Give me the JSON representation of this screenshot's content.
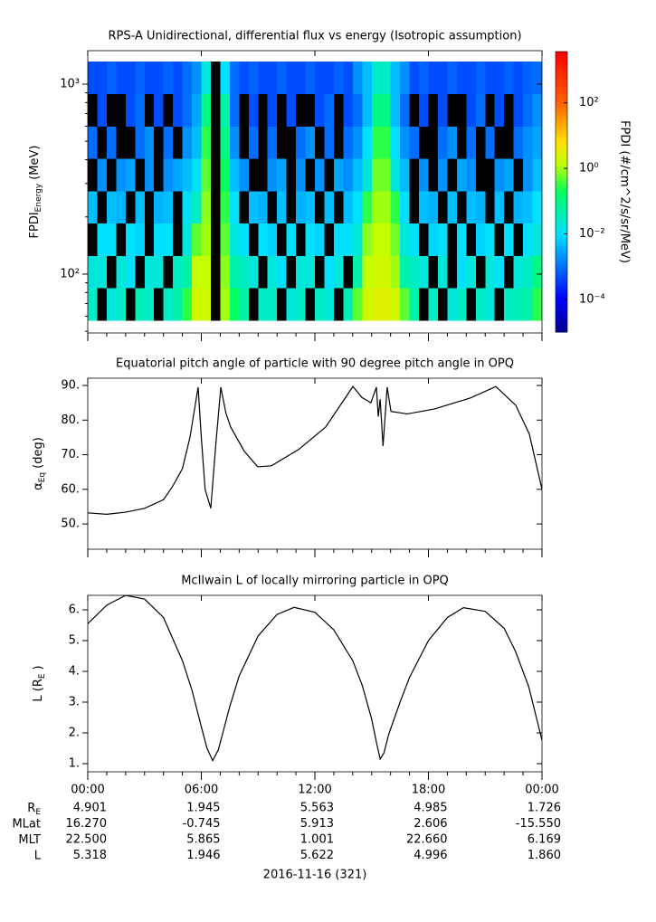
{
  "chart_data": [
    {
      "type": "spectrogram",
      "title": "RPS-A Unidirectional, differential flux vs energy (Isotropic assumption)",
      "y_label": {
        "text": "FPDI",
        "sub": "Energy",
        "suffix": "(MeV)"
      },
      "xlim": [
        0,
        24
      ],
      "xticks": [
        0,
        6,
        12,
        18,
        24
      ],
      "xminorticks": [
        1,
        2,
        3,
        4,
        5,
        7,
        8,
        9,
        10,
        11,
        13,
        14,
        15,
        16,
        17,
        19,
        20,
        21,
        22,
        23
      ],
      "ylim": [
        49,
        1500
      ],
      "ylog": true,
      "yticks": [
        {
          "value": 100,
          "label": "10²"
        },
        {
          "value": 1000,
          "label": "10³"
        }
      ],
      "yminorticks": [
        50,
        60,
        70,
        80,
        90,
        200,
        300,
        400,
        500,
        600,
        700,
        800,
        900
      ],
      "x_bins": [
        0,
        0.5,
        1,
        1.5,
        2,
        2.5,
        3,
        3.5,
        4,
        4.5,
        5,
        5.5,
        6,
        6.5,
        7,
        7.5,
        8,
        8.5,
        9,
        9.5,
        10,
        10.5,
        11,
        11.5,
        12,
        12.5,
        13,
        13.5,
        14,
        14.5,
        15,
        15.5,
        16,
        16.5,
        17,
        17.5,
        18,
        18.5,
        19,
        19.5,
        20,
        20.5,
        21,
        21.5,
        22,
        22.5,
        23,
        23.5,
        24
      ],
      "y_bins": [
        57,
        84.4,
        124.9,
        184.8,
        273.6,
        405,
        599,
        887,
        1313
      ],
      "colormap": "rainbow",
      "null_color": "#000000",
      "colorbar": {
        "label": "FPDI (#/cm^2/s/sr/MeV)",
        "lim": [
          1e-05,
          3700
        ],
        "log": true,
        "ticks": [
          {
            "value": 0.0001,
            "label": "10⁻⁴"
          },
          {
            "value": 0.01,
            "label": "10⁻²"
          },
          {
            "value": 1,
            "label": "10⁰"
          },
          {
            "value": 100,
            "label": "10²"
          }
        ]
      },
      "values": [
        [
          0.03,
          null,
          0.02,
          0.03,
          null,
          0.04,
          0.03,
          null,
          0.03,
          0.05,
          0.3,
          2,
          2,
          null,
          1,
          0.2,
          0.05,
          null,
          0.03,
          0.03,
          null,
          0.02,
          0.03,
          null,
          0.03,
          0.02,
          null,
          0.04,
          0.5,
          2,
          3,
          3,
          2,
          0.5,
          0.05,
          null,
          0.03,
          null,
          0.02,
          0.03,
          null,
          0.03,
          0.02,
          null,
          0.03,
          0.04,
          0.05,
          0.3
        ],
        [
          0.02,
          0.02,
          null,
          0.02,
          0.01,
          null,
          0.02,
          0.02,
          null,
          0.03,
          0.05,
          1.5,
          1.5,
          null,
          0.8,
          0.05,
          0.03,
          0.02,
          null,
          0.02,
          0.01,
          null,
          0.02,
          0.02,
          null,
          0.01,
          0.02,
          null,
          0.05,
          1.5,
          2,
          2,
          1,
          0.05,
          0.03,
          0.02,
          null,
          0.02,
          null,
          0.01,
          0.02,
          null,
          0.02,
          0.01,
          null,
          0.02,
          0.03,
          0.1
        ],
        [
          null,
          0.01,
          0.01,
          null,
          0.01,
          0.008,
          null,
          0.01,
          0.01,
          null,
          0.02,
          0.5,
          1,
          null,
          0.5,
          0.02,
          0.01,
          null,
          0.01,
          0.008,
          null,
          0.01,
          null,
          0.01,
          0.008,
          null,
          0.01,
          0.01,
          0.02,
          0.8,
          1.5,
          1.5,
          0.6,
          0.02,
          0.01,
          null,
          0.008,
          0.01,
          null,
          0.01,
          null,
          0.008,
          0.01,
          null,
          0.01,
          null,
          0.01,
          0.02
        ],
        [
          0.005,
          null,
          0.005,
          0.004,
          null,
          0.005,
          null,
          0.004,
          0.005,
          null,
          0.01,
          0.03,
          0.8,
          null,
          0.3,
          0.01,
          null,
          0.005,
          0.004,
          null,
          0.005,
          null,
          0.004,
          0.005,
          null,
          0.005,
          null,
          0.005,
          0.01,
          0.3,
          1,
          1,
          0.3,
          0.01,
          null,
          0.005,
          0.004,
          null,
          0.005,
          null,
          0.005,
          0.004,
          null,
          0.005,
          null,
          0.004,
          0.005,
          0.01
        ],
        [
          null,
          0.002,
          null,
          0.002,
          0.003,
          null,
          0.002,
          null,
          0.002,
          0.003,
          0.005,
          0.01,
          0.5,
          null,
          0.2,
          0.005,
          0.002,
          null,
          null,
          0.002,
          0.003,
          null,
          0.002,
          null,
          0.002,
          null,
          0.003,
          0.002,
          0.005,
          0.02,
          0.6,
          0.6,
          0.02,
          0.005,
          null,
          0.002,
          null,
          0.002,
          null,
          0.003,
          0.002,
          null,
          null,
          0.002,
          0.003,
          null,
          0.002,
          0.005
        ],
        [
          0.001,
          null,
          0.001,
          null,
          null,
          0.001,
          0.002,
          null,
          0.001,
          null,
          0.002,
          0.005,
          0.3,
          null,
          0.1,
          0.002,
          null,
          0.001,
          null,
          0.001,
          null,
          null,
          0.001,
          0.002,
          null,
          0.001,
          null,
          0.001,
          0.002,
          0.01,
          0.3,
          0.3,
          0.01,
          0.002,
          0.001,
          null,
          null,
          0.001,
          0.002,
          null,
          0.001,
          null,
          0.001,
          null,
          null,
          0.001,
          0.002,
          0.003
        ],
        [
          null,
          0.0005,
          null,
          null,
          0.0005,
          0.001,
          null,
          0.0005,
          null,
          0.0005,
          0.001,
          0.003,
          0.1,
          null,
          0.05,
          0.001,
          null,
          0.0005,
          null,
          0.0005,
          null,
          0.0005,
          null,
          null,
          0.0005,
          0.001,
          null,
          0.0005,
          0.001,
          0.005,
          0.1,
          0.1,
          0.005,
          0.001,
          null,
          0.0005,
          null,
          0.0005,
          null,
          null,
          0.0005,
          0.001,
          null,
          0.0005,
          null,
          0.0005,
          0.001,
          0.002
        ],
        [
          0.0005,
          0.0005,
          0.0008,
          0.0005,
          0.0005,
          0.0008,
          0.0005,
          0.0005,
          0.0008,
          0.0005,
          0.001,
          0.002,
          0.02,
          null,
          0.01,
          0.001,
          0.0005,
          0.0008,
          0.0005,
          0.0005,
          0.0008,
          0.0005,
          0.0005,
          0.0008,
          0.0005,
          0.0005,
          0.0008,
          0.0005,
          0.002,
          0.005,
          0.03,
          0.03,
          0.005,
          0.002,
          0.0005,
          0.0008,
          0.0005,
          0.0005,
          0.0008,
          0.0005,
          0.0005,
          0.0008,
          0.0005,
          0.0005,
          0.0008,
          0.0005,
          0.0008,
          0.001
        ]
      ]
    },
    {
      "type": "line",
      "title": "Equatorial pitch angle of particle with 90 degree pitch angle in OPQ",
      "y_label": {
        "text": "α",
        "sub": "Eq",
        "suffix": "(deg)"
      },
      "xlim": [
        0,
        24
      ],
      "xticks": [
        0,
        6,
        12,
        18,
        24
      ],
      "xminorticks": [
        1,
        2,
        3,
        4,
        5,
        7,
        8,
        9,
        10,
        11,
        13,
        14,
        15,
        16,
        17,
        19,
        20,
        21,
        22,
        23
      ],
      "ylim": [
        42.7,
        92.1
      ],
      "yticks": [
        {
          "value": 50,
          "label": "50."
        },
        {
          "value": 60,
          "label": "60."
        },
        {
          "value": 70,
          "label": "70."
        },
        {
          "value": 80,
          "label": "80."
        },
        {
          "value": 90,
          "label": "90."
        }
      ],
      "color": "#000000",
      "x": [
        0,
        1,
        2,
        3,
        4,
        4.5,
        5,
        5.4,
        5.83,
        6.0,
        6.2,
        6.5,
        6.75,
        7.03,
        7.3,
        7.55,
        8.27,
        8.98,
        9.7,
        11.14,
        12.57,
        14.01,
        14.49,
        14.96,
        15.25,
        15.35,
        15.45,
        15.6,
        15.82,
        16.02,
        16.88,
        18.31,
        20.22,
        21.56,
        22.61,
        23.33,
        24
      ],
      "values": [
        53.2,
        52.8,
        53.4,
        54.5,
        57,
        61,
        66,
        75,
        89.5,
        75,
        60,
        54.5,
        72,
        89.5,
        82,
        78,
        71,
        66.5,
        66.8,
        71.5,
        78,
        89.7,
        86.5,
        85,
        89.5,
        81,
        86,
        72.5,
        89.5,
        82.5,
        81.8,
        83.2,
        86.4,
        89.7,
        84.3,
        76,
        60
      ]
    },
    {
      "type": "line",
      "title": "McIlwain L of locally mirroring particle in OPQ",
      "y_label": {
        "text": "L (R",
        "sub": "E",
        "suffix": ")"
      },
      "xlim": [
        0,
        24
      ],
      "xticks": [
        {
          "value": 0,
          "label": "00:00"
        },
        {
          "value": 6,
          "label": "06:00"
        },
        {
          "value": 12,
          "label": "12:00"
        },
        {
          "value": 18,
          "label": "18:00"
        },
        {
          "value": 24,
          "label": "00:00"
        }
      ],
      "xminorticks": [
        1,
        2,
        3,
        4,
        5,
        7,
        8,
        9,
        10,
        11,
        13,
        14,
        15,
        16,
        17,
        19,
        20,
        21,
        22,
        23
      ],
      "ylim": [
        0.735,
        6.47
      ],
      "yticks": [
        {
          "value": 1,
          "label": "1."
        },
        {
          "value": 2,
          "label": "2."
        },
        {
          "value": 3,
          "label": "3."
        },
        {
          "value": 4,
          "label": "4."
        },
        {
          "value": 5,
          "label": "5."
        },
        {
          "value": 6,
          "label": "6."
        }
      ],
      "color": "#000000",
      "x": [
        0,
        1,
        2,
        3,
        4,
        5,
        5.5,
        6,
        6.3,
        6.6,
        6.9,
        7.2,
        7.5,
        8,
        9,
        10,
        10.9,
        12,
        13,
        14,
        14.5,
        15,
        15.25,
        15.45,
        15.65,
        15.9,
        16.5,
        17,
        18,
        19,
        19.85,
        21,
        22,
        22.6,
        23.3,
        24
      ],
      "values": [
        5.55,
        6.15,
        6.47,
        6.35,
        5.75,
        4.35,
        3.4,
        2.2,
        1.5,
        1.1,
        1.45,
        2.15,
        2.85,
        3.85,
        5.15,
        5.85,
        6.08,
        5.92,
        5.35,
        4.35,
        3.55,
        2.45,
        1.7,
        1.15,
        1.35,
        1.95,
        3.0,
        3.8,
        5.0,
        5.75,
        6.07,
        5.95,
        5.4,
        4.65,
        3.5,
        1.76
      ]
    }
  ],
  "ephemeris": {
    "rows": [
      {
        "label": "R",
        "label_sub": "E",
        "values": [
          "4.901",
          "1.945",
          "5.563",
          "4.985",
          "1.726"
        ]
      },
      {
        "label": "MLat",
        "values": [
          "16.270",
          "-0.745",
          "5.913",
          "2.606",
          "-15.550"
        ]
      },
      {
        "label": "MLT",
        "values": [
          "22.500",
          "5.865",
          "1.001",
          "22.660",
          "6.169"
        ]
      },
      {
        "label": "L",
        "values": [
          "5.318",
          "1.946",
          "5.622",
          "4.996",
          "1.860"
        ]
      }
    ],
    "date": "2016-11-16 (321)"
  }
}
